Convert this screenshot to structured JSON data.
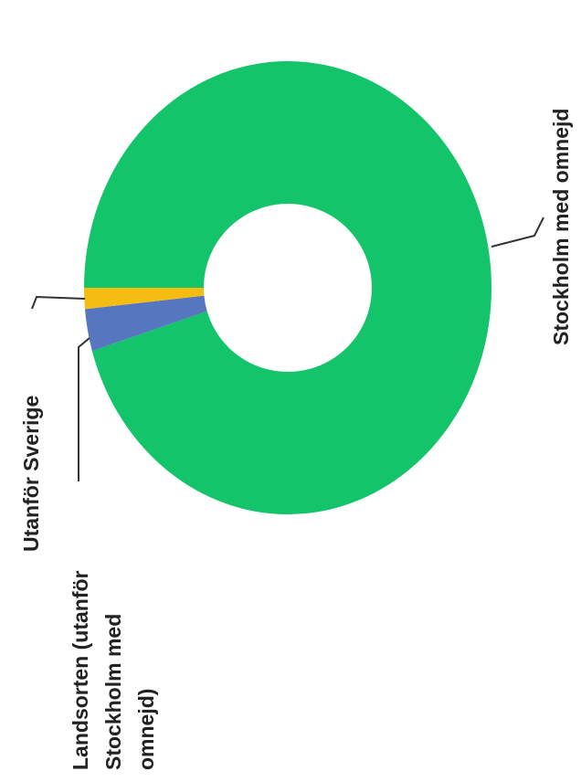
{
  "chart_data": {
    "type": "pie",
    "subtype": "donut",
    "orientation": "rotated 90° counter-clockwise",
    "title": "",
    "slices": [
      {
        "label": "Stockholm med omnejd",
        "lines": [
          "Stockholm med omnejd"
        ],
        "value": 95.5,
        "color": "#14c46a"
      },
      {
        "label": "Landsorten (utanför Stockholm med omnejd)",
        "lines": [
          "Landsorten (utanför",
          "Stockholm med",
          "omnejd)"
        ],
        "value": 3.0,
        "color": "#5677c0"
      },
      {
        "label": "Utanför Sverige",
        "lines": [
          "Utanför Sverige"
        ],
        "value": 1.5,
        "color": "#f5bd12"
      }
    ],
    "legend": "none (direct labels)"
  }
}
